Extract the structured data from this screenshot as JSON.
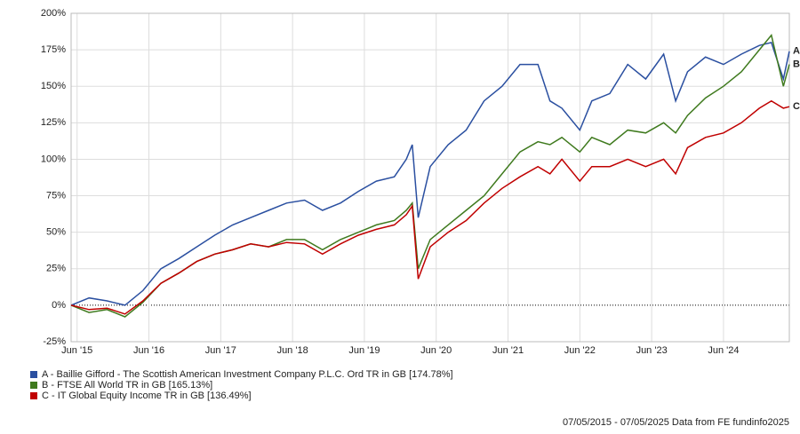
{
  "chart_data": {
    "type": "line",
    "x": [
      "2015-05",
      "2015-08",
      "2015-11",
      "2016-02",
      "2016-05",
      "2016-08",
      "2016-11",
      "2017-02",
      "2017-05",
      "2017-08",
      "2017-11",
      "2018-02",
      "2018-05",
      "2018-08",
      "2018-11",
      "2019-02",
      "2019-05",
      "2019-08",
      "2019-11",
      "2020-01",
      "2020-02",
      "2020-03",
      "2020-05",
      "2020-08",
      "2020-11",
      "2021-02",
      "2021-05",
      "2021-08",
      "2021-11",
      "2022-01",
      "2022-03",
      "2022-06",
      "2022-08",
      "2022-11",
      "2023-02",
      "2023-05",
      "2023-08",
      "2023-10",
      "2023-12",
      "2024-03",
      "2024-06",
      "2024-09",
      "2024-12",
      "2025-02",
      "2025-04",
      "2025-05"
    ],
    "series": [
      {
        "name": "A - Baillie Gifford - The Scottish American Investment Company P.L.C. Ord TR in GB [174.78%]",
        "end_label": "A",
        "color": "#2a4fa0",
        "values": [
          0,
          5,
          3,
          0,
          10,
          25,
          32,
          40,
          48,
          55,
          60,
          65,
          70,
          72,
          65,
          70,
          78,
          85,
          88,
          100,
          110,
          60,
          95,
          110,
          120,
          140,
          150,
          165,
          165,
          140,
          135,
          120,
          140,
          145,
          165,
          155,
          172,
          140,
          160,
          170,
          165,
          172,
          178,
          180,
          155,
          174
        ]
      },
      {
        "name": "B - FTSE All World TR in GB [165.13%]",
        "end_label": "B",
        "color": "#3f7a1e",
        "values": [
          0,
          -5,
          -3,
          -8,
          2,
          15,
          22,
          30,
          35,
          38,
          42,
          40,
          45,
          45,
          38,
          45,
          50,
          55,
          58,
          65,
          70,
          25,
          45,
          55,
          65,
          75,
          90,
          105,
          112,
          110,
          115,
          105,
          115,
          110,
          120,
          118,
          125,
          118,
          130,
          142,
          150,
          160,
          175,
          185,
          150,
          165
        ]
      },
      {
        "name": "C - IT Global Equity Income TR in GB [136.49%]",
        "end_label": "C",
        "color": "#c00000",
        "values": [
          0,
          -3,
          -2,
          -6,
          3,
          15,
          22,
          30,
          35,
          38,
          42,
          40,
          43,
          42,
          35,
          42,
          48,
          52,
          55,
          62,
          68,
          18,
          40,
          50,
          58,
          70,
          80,
          88,
          95,
          90,
          100,
          85,
          95,
          95,
          100,
          95,
          100,
          90,
          108,
          115,
          118,
          125,
          135,
          140,
          135,
          136
        ]
      }
    ],
    "ylim": [
      -25,
      200
    ],
    "yticks": [
      {
        "value": -25,
        "label": "-25%"
      },
      {
        "value": 0,
        "label": "0%"
      },
      {
        "value": 25,
        "label": "25%"
      },
      {
        "value": 50,
        "label": "50%"
      },
      {
        "value": 75,
        "label": "75%"
      },
      {
        "value": 100,
        "label": "100%"
      },
      {
        "value": 125,
        "label": "125%"
      },
      {
        "value": 150,
        "label": "150%"
      },
      {
        "value": 175,
        "label": "175%"
      },
      {
        "value": 200,
        "label": "200%"
      }
    ],
    "xlim": [
      "2015-05",
      "2025-05"
    ],
    "xticks": [
      {
        "value": "2015-06",
        "label": "Jun '15"
      },
      {
        "value": "2016-06",
        "label": "Jun '16"
      },
      {
        "value": "2017-06",
        "label": "Jun '17"
      },
      {
        "value": "2018-06",
        "label": "Jun '18"
      },
      {
        "value": "2019-06",
        "label": "Jun '19"
      },
      {
        "value": "2020-06",
        "label": "Jun '20"
      },
      {
        "value": "2021-06",
        "label": "Jun '21"
      },
      {
        "value": "2022-06",
        "label": "Jun '22"
      },
      {
        "value": "2023-06",
        "label": "Jun '23"
      },
      {
        "value": "2024-06",
        "label": "Jun '24"
      }
    ],
    "grid": true,
    "footer": "07/05/2015 - 07/05/2025 Data from FE fundinfo2025"
  }
}
